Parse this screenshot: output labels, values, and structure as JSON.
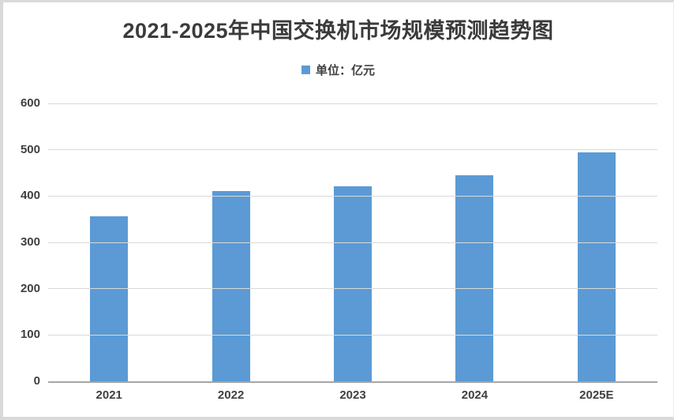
{
  "chart_data": {
    "type": "bar",
    "title": "2021-2025年中国交换机市场规模预测趋势图",
    "legend_label": "单位：亿元",
    "legend_position": "top-center",
    "categories": [
      "2021",
      "2022",
      "2023",
      "2024",
      "2025E"
    ],
    "values": [
      357,
      411,
      421,
      445,
      495
    ],
    "xlabel": "",
    "ylabel": "",
    "ylim": [
      0,
      600
    ],
    "yticks": [
      0,
      100,
      200,
      300,
      400,
      500,
      600
    ],
    "grid": true,
    "bar_color": "#5B9AD5",
    "colors": {
      "title_text": "#3B3B3B",
      "tick_text": "#404040",
      "gridline": "#D9D9D9",
      "axis_line": "#A6A6A6",
      "frame_border": "#D9D9D9",
      "background": "#FFFFFF"
    }
  }
}
